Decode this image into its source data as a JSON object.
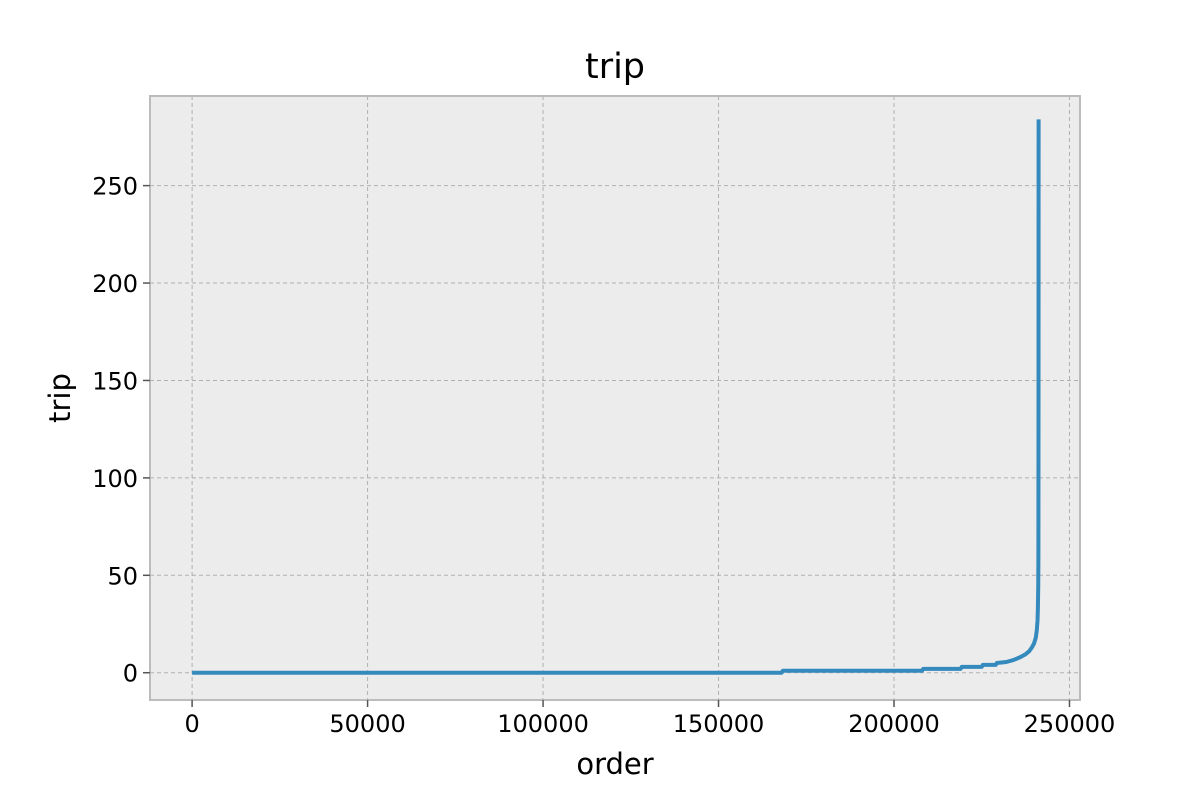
{
  "chart_data": {
    "type": "line",
    "title": "trip",
    "xlabel": "order",
    "ylabel": "trip",
    "xlim": [
      -12000,
      253000
    ],
    "ylim": [
      -14,
      296
    ],
    "xticks": [
      0,
      50000,
      100000,
      150000,
      200000,
      250000
    ],
    "yticks": [
      0,
      50,
      100,
      150,
      200,
      250
    ],
    "grid": true,
    "series": [
      {
        "color": "#348abd",
        "points": [
          [
            0,
            0
          ],
          [
            168000,
            0
          ],
          [
            168300,
            1
          ],
          [
            208000,
            1
          ],
          [
            208300,
            2
          ],
          [
            219000,
            2
          ],
          [
            219300,
            3
          ],
          [
            225000,
            3
          ],
          [
            225300,
            4
          ],
          [
            229000,
            4
          ],
          [
            229300,
            5
          ],
          [
            232000,
            5.5
          ],
          [
            234000,
            6.5
          ],
          [
            236000,
            8
          ],
          [
            237500,
            9.5
          ],
          [
            238500,
            11
          ],
          [
            239300,
            13
          ],
          [
            239900,
            15
          ],
          [
            240400,
            18
          ],
          [
            240700,
            22
          ],
          [
            240900,
            27
          ],
          [
            241000,
            33
          ],
          [
            241100,
            45
          ],
          [
            241150,
            60
          ],
          [
            241180,
            150
          ],
          [
            241200,
            284
          ]
        ]
      }
    ]
  },
  "colors": {
    "plot_bg": "#ececec",
    "grid": "#b0b0b0",
    "frame": "#bcbcbc",
    "line": "#348abd"
  }
}
